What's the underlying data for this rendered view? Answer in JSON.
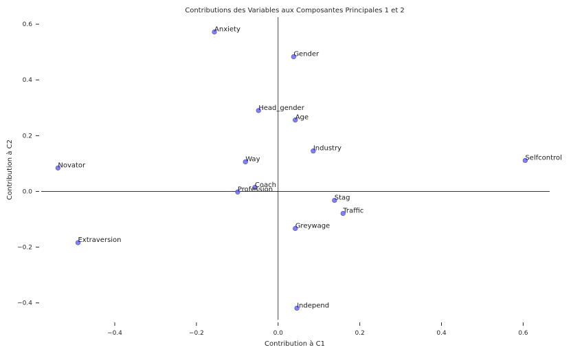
{
  "chart_data": {
    "type": "scatter",
    "title": "Contributions des Variables aux Composantes Principales 1 et 2",
    "xlabel": "Contribution à C1",
    "ylabel": "Contribution à C2",
    "xlim": [
      -0.58,
      0.665
    ],
    "ylim": [
      -0.46,
      0.625
    ],
    "xticks": [
      -0.4,
      -0.2,
      0.0,
      0.2,
      0.4,
      0.6
    ],
    "xtick_labels": [
      "−0.4",
      "−0.2",
      "0.0",
      "0.2",
      "0.4",
      "0.6"
    ],
    "yticks": [
      -0.4,
      -0.2,
      0.0,
      0.2,
      0.4,
      0.6
    ],
    "ytick_labels": [
      "−0.4",
      "−0.2",
      "0.0",
      "0.2",
      "0.4",
      "0.6"
    ],
    "grid": false,
    "point_color": "#6b6bf0",
    "points": [
      {
        "label": "Anxiety",
        "x": -0.156,
        "y": 0.572
      },
      {
        "label": "Gender",
        "x": 0.038,
        "y": 0.483
      },
      {
        "label": "Head_gender",
        "x": -0.048,
        "y": 0.29
      },
      {
        "label": "Age",
        "x": 0.042,
        "y": 0.256
      },
      {
        "label": "Industry",
        "x": 0.086,
        "y": 0.145
      },
      {
        "label": "Selfcontrol",
        "x": 0.605,
        "y": 0.111
      },
      {
        "label": "Novator",
        "x": -0.539,
        "y": 0.084
      },
      {
        "label": "Way",
        "x": -0.08,
        "y": 0.106
      },
      {
        "label": "Coach",
        "x": -0.057,
        "y": 0.014
      },
      {
        "label": "Profession",
        "x": -0.099,
        "y": -0.002
      },
      {
        "label": "Stag",
        "x": 0.138,
        "y": -0.032
      },
      {
        "label": "Traffic",
        "x": 0.159,
        "y": -0.079
      },
      {
        "label": "Greywage",
        "x": 0.042,
        "y": -0.133
      },
      {
        "label": "Extraversion",
        "x": -0.49,
        "y": -0.184
      },
      {
        "label": "Independ",
        "x": 0.046,
        "y": -0.419
      }
    ]
  }
}
